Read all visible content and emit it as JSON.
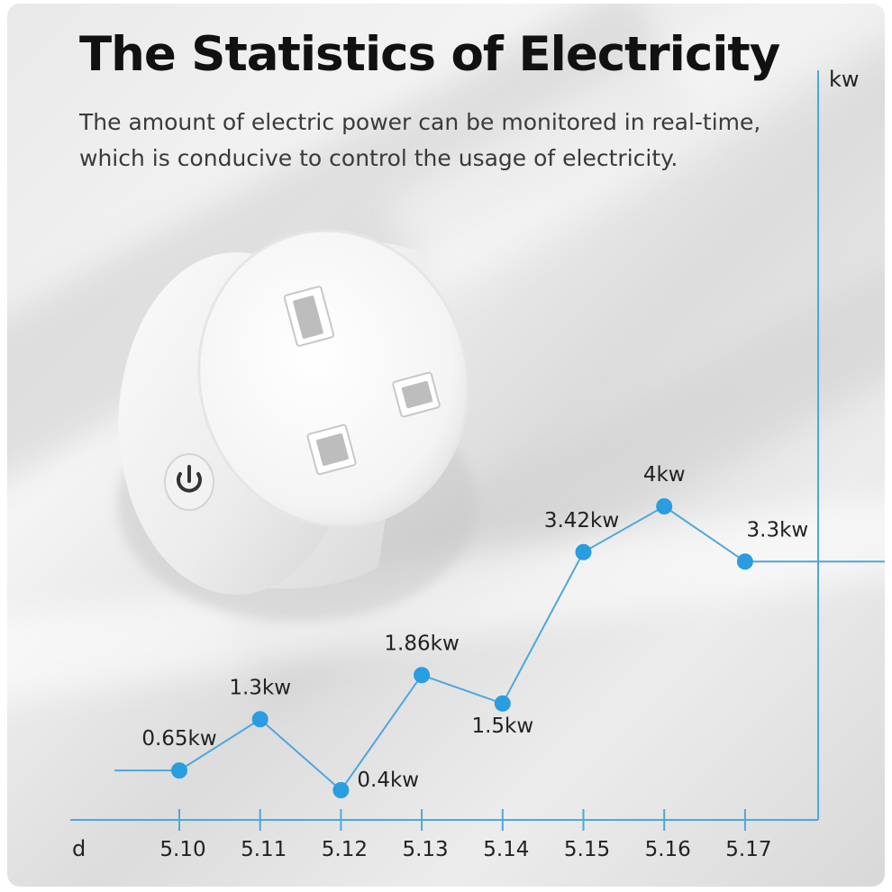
{
  "header": {
    "title": "The Statistics of Electricity",
    "subtitle_lines": [
      "The amount of electric power can be monitored in real-time,",
      "which is conducive to control the usage of electricity."
    ]
  },
  "colors": {
    "line": "#4ea7dc",
    "marker": "#2a9ce0",
    "text": "#222222"
  },
  "product": {
    "icon": "power-icon"
  },
  "chart_data": {
    "type": "line",
    "title": "The Statistics of Electricity",
    "xlabel": "d",
    "ylabel": "kw",
    "categories": [
      "5.10",
      "5.11",
      "5.12",
      "5.13",
      "5.14",
      "5.15",
      "5.16",
      "5.17"
    ],
    "values": [
      0.65,
      1.3,
      0.4,
      1.86,
      1.5,
      3.42,
      4,
      3.3
    ],
    "labels": [
      "0.65kw",
      "1.3kw",
      "0.4kw",
      "1.86kw",
      "1.5kw",
      "3.42kw",
      "4kw",
      "3.3kw"
    ],
    "label_position": [
      "above",
      "above",
      "right",
      "above",
      "below",
      "above",
      "above",
      "above"
    ],
    "ylim": [
      0,
      4.5
    ],
    "grid": false,
    "legend": "none"
  }
}
